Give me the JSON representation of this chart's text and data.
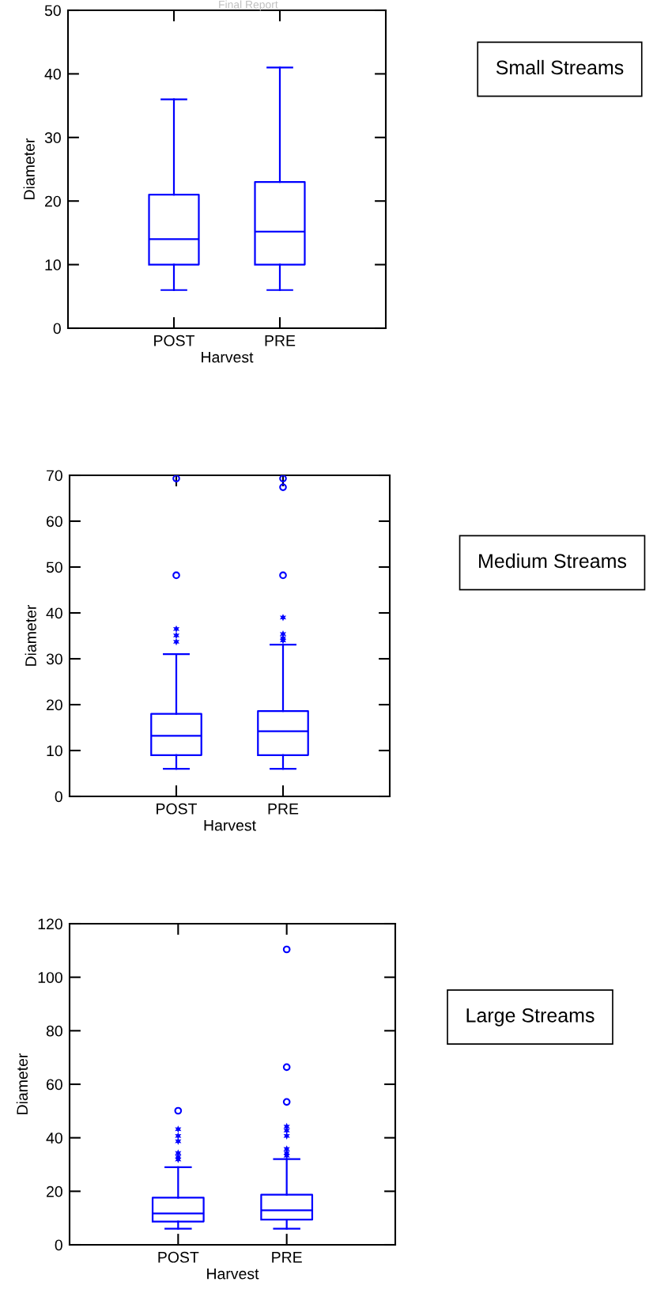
{
  "chart_data": [
    {
      "type": "box",
      "annotations": [
        "Small Streams",
        "Final Report"
      ],
      "xlabel": "Harvest",
      "ylabel": "Diameter",
      "categories": [
        "POST",
        "PRE"
      ],
      "ylim": [
        0,
        50
      ],
      "yticks": [
        0,
        10,
        20,
        30,
        40,
        50
      ],
      "grid": false,
      "series": [
        {
          "color": "#0000ff",
          "boxes": [
            {
              "low": 6,
              "q1": 10,
              "median": 14,
              "q3": 21,
              "high": 36
            },
            {
              "low": 6,
              "q1": 10,
              "median": 15.2,
              "q3": 23,
              "high": 41
            }
          ]
        }
      ]
    },
    {
      "type": "box",
      "annotations": [
        "Medium Streams"
      ],
      "xlabel": "Harvest",
      "ylabel": "Diameter",
      "categories": [
        "POST",
        "PRE"
      ],
      "ylim": [
        0,
        70
      ],
      "yticks": [
        0,
        10,
        20,
        30,
        40,
        50,
        60,
        70
      ],
      "grid": false,
      "series": [
        {
          "color": "#0000ff",
          "boxes": [
            {
              "low": 6,
              "q1": 9,
              "median": 13.2,
              "q3": 18,
              "high": 31,
              "outliers": [
                33.7,
                35.1,
                36.5,
                48.2,
                69.3
              ]
            },
            {
              "low": 6,
              "q1": 9,
              "median": 14.2,
              "q3": 18.6,
              "high": 33.1,
              "outliers": [
                34.0,
                34.5,
                35.4,
                39.0,
                48.2,
                67.4,
                69.3
              ]
            }
          ]
        }
      ]
    },
    {
      "type": "box",
      "annotations": [
        "Large Streams"
      ],
      "xlabel": "Harvest",
      "ylabel": "Diameter",
      "categories": [
        "POST",
        "PRE"
      ],
      "ylim": [
        0,
        120
      ],
      "yticks": [
        0,
        20,
        40,
        60,
        80,
        100,
        120
      ],
      "grid": false,
      "series": [
        {
          "color": "#0000ff",
          "boxes": [
            {
              "low": 6,
              "q1": 8.7,
              "median": 11.7,
              "q3": 17.6,
              "high": 29,
              "outliers": [
                31.9,
                32.9,
                34.3,
                38.7,
                40.7,
                43.2,
                50.1
              ]
            },
            {
              "low": 6,
              "q1": 9.4,
              "median": 12.9,
              "q3": 18.7,
              "high": 32,
              "outliers": [
                33.3,
                34.3,
                35.8,
                40.7,
                42.7,
                44.2,
                53.4,
                66.4,
                110.4
              ]
            }
          ]
        }
      ]
    }
  ]
}
